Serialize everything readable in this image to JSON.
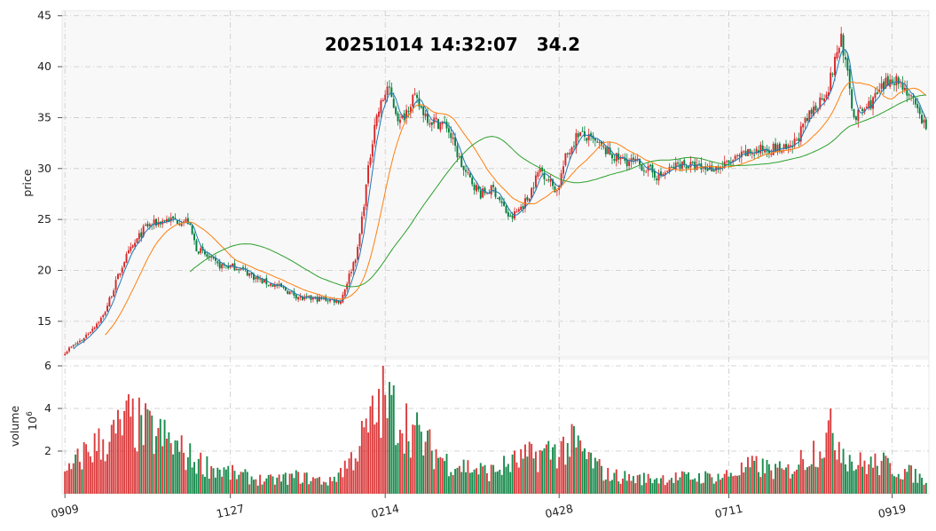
{
  "chart_data": [
    {
      "panel": "price",
      "type": "candlestick",
      "title_date": "20251014",
      "title_time": "14:32:07",
      "title_price": "34.2",
      "ylabel": "price",
      "ylim": [
        11.5,
        45.5
      ],
      "yticks": [
        "15",
        "20",
        "25",
        "30",
        "35",
        "40",
        "45"
      ],
      "grid": true,
      "ma_colors": {
        "ma_short": "#1f77b4",
        "ma_mid": "#ff7f0e",
        "ma_long": "#2ca02c"
      },
      "up_color": "#d62728",
      "down_color": "#007f3b",
      "close_anchors_by_index": [
        [
          0,
          12.0
        ],
        [
          8,
          13.2
        ],
        [
          18,
          15.5
        ],
        [
          28,
          21.0
        ],
        [
          38,
          24.3
        ],
        [
          48,
          25.0
        ],
        [
          58,
          24.8
        ],
        [
          62,
          22.2
        ],
        [
          72,
          20.5
        ],
        [
          82,
          20.3
        ],
        [
          92,
          19.0
        ],
        [
          102,
          18.3
        ],
        [
          112,
          17.2
        ],
        [
          122,
          17.2
        ],
        [
          130,
          17.0
        ],
        [
          138,
          22.0
        ],
        [
          146,
          34.5
        ],
        [
          152,
          38.0
        ],
        [
          158,
          34.5
        ],
        [
          164,
          37.0
        ],
        [
          172,
          34.8
        ],
        [
          180,
          34.2
        ],
        [
          188,
          29.8
        ],
        [
          196,
          27.5
        ],
        [
          202,
          28.0
        ],
        [
          210,
          25.0
        ],
        [
          218,
          27.0
        ],
        [
          224,
          30.0
        ],
        [
          232,
          27.8
        ],
        [
          236,
          31.0
        ],
        [
          242,
          33.5
        ],
        [
          250,
          32.5
        ],
        [
          260,
          31.0
        ],
        [
          270,
          30.5
        ],
        [
          280,
          29.2
        ],
        [
          290,
          30.5
        ],
        [
          300,
          30.0
        ],
        [
          310,
          30.2
        ],
        [
          322,
          31.5
        ],
        [
          332,
          32.0
        ],
        [
          342,
          31.8
        ],
        [
          352,
          35.5
        ],
        [
          360,
          38.0
        ],
        [
          366,
          43.0
        ],
        [
          372,
          35.0
        ],
        [
          378,
          36.0
        ],
        [
          384,
          37.5
        ],
        [
          390,
          39.0
        ],
        [
          396,
          38.0
        ],
        [
          402,
          35.5
        ],
        [
          406,
          34.2
        ]
      ]
    },
    {
      "panel": "volume",
      "type": "bar",
      "ylabel": "volume",
      "yunit": "10^6",
      "ylim": [
        0,
        6
      ],
      "yticks": [
        "2",
        "4",
        "6"
      ],
      "xticks": [
        "0909",
        "1127",
        "0214",
        "0428",
        "0711",
        "0919"
      ],
      "xtick_indices": [
        0,
        78,
        151,
        233,
        313,
        390
      ],
      "volume_anchors_by_index": [
        [
          0,
          0.8
        ],
        [
          10,
          2.0
        ],
        [
          22,
          2.6
        ],
        [
          30,
          3.4
        ],
        [
          38,
          3.0
        ],
        [
          48,
          2.5
        ],
        [
          60,
          1.6
        ],
        [
          70,
          1.2
        ],
        [
          80,
          0.9
        ],
        [
          95,
          0.6
        ],
        [
          110,
          0.8
        ],
        [
          125,
          0.55
        ],
        [
          135,
          1.6
        ],
        [
          150,
          4.3
        ],
        [
          160,
          3.4
        ],
        [
          170,
          2.3
        ],
        [
          180,
          1.5
        ],
        [
          200,
          1.0
        ],
        [
          215,
          1.6
        ],
        [
          230,
          2.0
        ],
        [
          240,
          2.3
        ],
        [
          255,
          0.9
        ],
        [
          270,
          0.7
        ],
        [
          290,
          0.75
        ],
        [
          310,
          0.8
        ],
        [
          325,
          1.3
        ],
        [
          340,
          1.0
        ],
        [
          355,
          2.2
        ],
        [
          362,
          2.9
        ],
        [
          372,
          1.4
        ],
        [
          385,
          1.4
        ],
        [
          400,
          0.9
        ],
        [
          406,
          0.6
        ]
      ],
      "bar_count": 407
    }
  ]
}
